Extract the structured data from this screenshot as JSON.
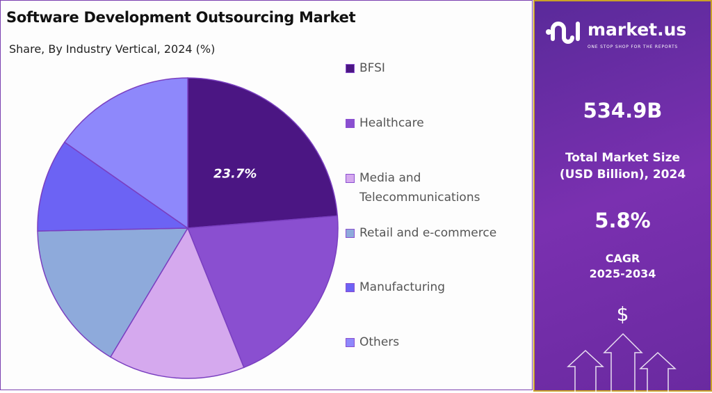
{
  "chart_data": {
    "type": "pie",
    "title": "Software Development Outsourcing Market",
    "subtitle": "Share, By Industry Vertical, 2024 (%)",
    "legend_position": "right",
    "categories": [
      "BFSI",
      "Healthcare",
      "Media and Telecommunications",
      "Retail and e-commerce",
      "Manufacturing",
      "Others"
    ],
    "values": [
      23.7,
      20.2,
      14.7,
      16.1,
      10.0,
      15.3
    ],
    "colors": [
      "#4b1683",
      "#8a4fd0",
      "#d5a9ee",
      "#8eaadb",
      "#6c63f4",
      "#8e88fb"
    ],
    "data_labels": [
      "23.7%",
      "",
      "",
      "",
      "",
      ""
    ],
    "legend_lines": [
      [
        "BFSI"
      ],
      [
        "Healthcare"
      ],
      [
        "Media and",
        "Telecommunications"
      ],
      [
        "Retail and e-commerce"
      ],
      [
        "Manufacturing"
      ],
      [
        "Others"
      ]
    ]
  },
  "sidebar": {
    "brand": "market.us",
    "tagline": "ONE STOP SHOP FOR THE REPORTS",
    "market_size": "534.9B",
    "market_size_label_1": "Total Market Size",
    "market_size_label_2": "(USD Billion), 2024",
    "cagr": "5.8%",
    "cagr_label_1": "CAGR",
    "cagr_label_2": "2025-2034",
    "currency_symbol": "$"
  }
}
